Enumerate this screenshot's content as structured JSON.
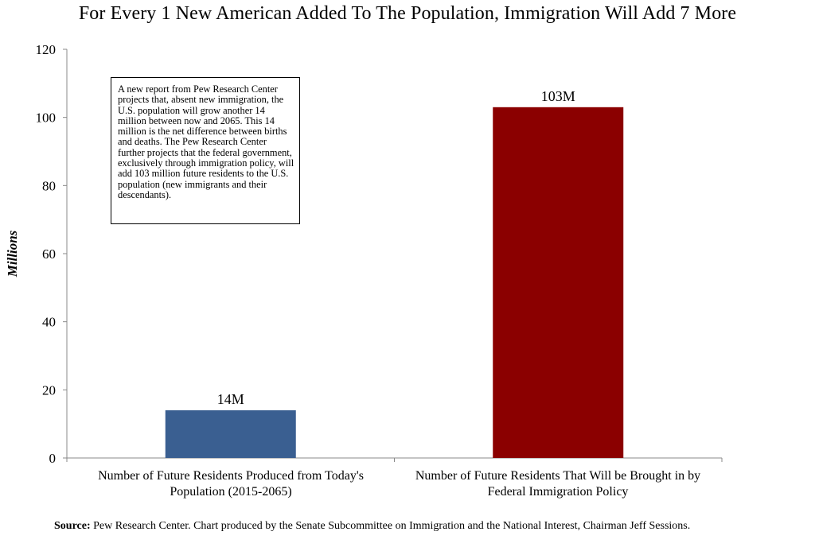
{
  "chart_data": {
    "type": "bar",
    "title": "For Every 1 New American Added To The Population, Immigration Will Add 7 More",
    "ylabel": "Millions",
    "xlabel": "",
    "ylim": [
      0,
      120
    ],
    "yticks": [
      0,
      20,
      40,
      60,
      80,
      100,
      120
    ],
    "categories": [
      "Number of Future Residents Produced from Today's Population (2015-2065)",
      "Number of Future Residents That Will be Brought in by Federal Immigration Policy"
    ],
    "values": [
      14,
      103
    ],
    "data_labels": [
      "14M",
      "103M"
    ],
    "colors": [
      "#3a5f91",
      "#8b0000"
    ],
    "grid": false,
    "legend": "none",
    "annotation": "A new report from Pew Research Center projects that, absent new immigration, the U.S. population will grow another 14 million between now and 2065. This 14 million is the net difference between births and deaths. The Pew Research Center further projects that the federal government, exclusively through immigration policy, will add 103 million future residents to the U.S. population (new immigrants and their descendants).",
    "source_label": "Source:",
    "source_text": "Pew Research Center. Chart produced by the Senate Subcommittee on Immigration and the National Interest, Chairman Jeff Sessions."
  }
}
